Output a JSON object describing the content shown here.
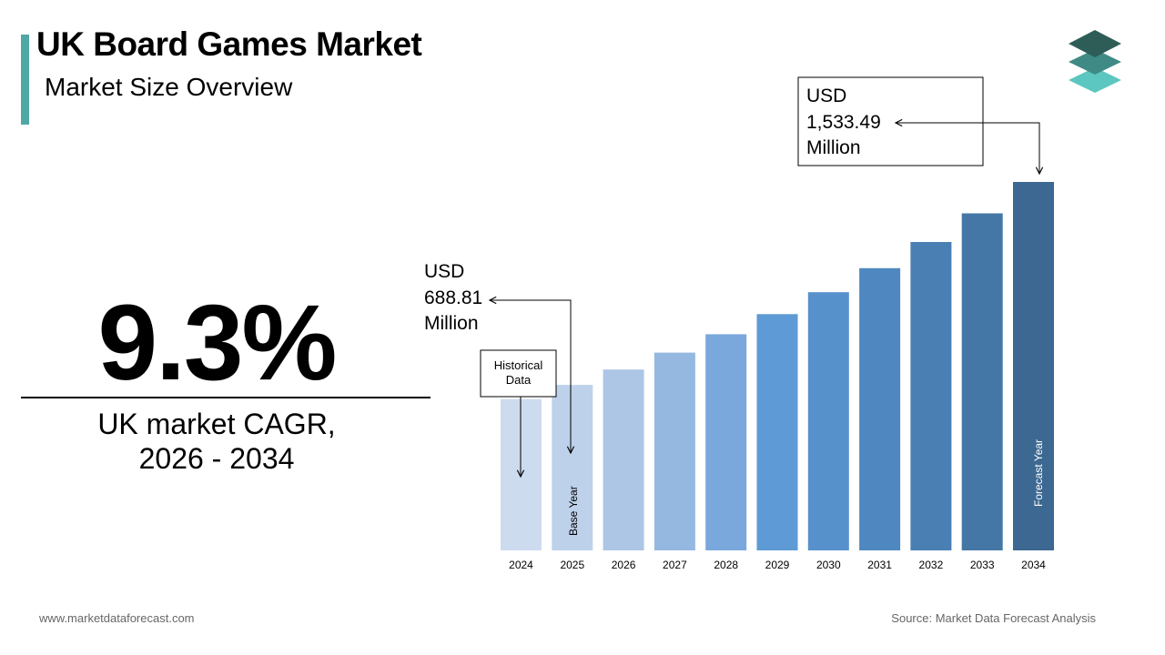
{
  "header": {
    "title": "UK Board Games Market",
    "subtitle": "Market Size Overview"
  },
  "cagr": {
    "value": "9.3%",
    "label_line1": "UK market CAGR,",
    "label_line2": "2026 - 2034"
  },
  "chart_data": {
    "type": "bar",
    "categories": [
      "2024",
      "2025",
      "2026",
      "2027",
      "2028",
      "2029",
      "2030",
      "2031",
      "2032",
      "2033",
      "2034"
    ],
    "values": [
      630.2,
      688.81,
      752.9,
      823.0,
      899.5,
      983.2,
      1074.6,
      1174.5,
      1283.7,
      1403.0,
      1533.49
    ],
    "ylim": [
      0,
      1600
    ],
    "bar_colors": [
      "#cddbee",
      "#bed1ea",
      "#adc6e6",
      "#95b8e0",
      "#7aa8dc",
      "#5e9ad5",
      "#5691cc",
      "#4f88c0",
      "#497fb3",
      "#4477a6",
      "#3c6892"
    ],
    "annotations": {
      "base_year": {
        "line1": "USD",
        "line2": "688.81",
        "line3": "Million",
        "category": "2025"
      },
      "forecast": {
        "line1": "USD",
        "line2": "1,533.49",
        "line3": "Million",
        "category": "2034"
      },
      "historical": {
        "line1": "Historical",
        "line2": "Data",
        "category": "2024"
      }
    },
    "bar_labels": {
      "base_year": "Base Year",
      "forecast_year": "Forecast Year"
    }
  },
  "footer": {
    "website": "www.marketdataforecast.com",
    "source": "Source: Market Data Forecast Analysis"
  },
  "colors": {
    "accent": "#4fa8a4",
    "logo_top": "#2e5d58",
    "logo_mid": "#3f8a84",
    "logo_bottom": "#5cc6c0"
  }
}
